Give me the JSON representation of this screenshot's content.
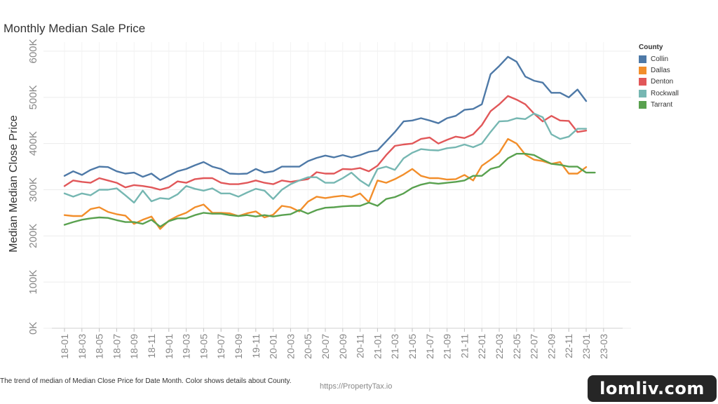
{
  "chart_data": {
    "type": "line",
    "title": "Monthly Median Sale Price",
    "ylabel": "Median Median Close Price",
    "xlabel": "",
    "ylim": [
      0,
      620000
    ],
    "y_ticks": [
      0,
      100000,
      200000,
      300000,
      400000,
      500000,
      600000
    ],
    "y_tick_labels": [
      "0K",
      "100K",
      "200K",
      "300K",
      "400K",
      "500K",
      "600K"
    ],
    "x": [
      "18-01",
      "18-02",
      "18-03",
      "18-04",
      "18-05",
      "18-06",
      "18-07",
      "18-08",
      "18-09",
      "18-10",
      "18-11",
      "18-12",
      "19-01",
      "19-02",
      "19-03",
      "19-04",
      "19-05",
      "19-06",
      "19-07",
      "19-08",
      "19-09",
      "19-10",
      "19-11",
      "19-12",
      "20-01",
      "20-02",
      "20-03",
      "20-04",
      "20-05",
      "20-06",
      "20-07",
      "20-08",
      "20-09",
      "20-10",
      "20-11",
      "20-12",
      "21-01",
      "21-02",
      "21-03",
      "21-04",
      "21-05",
      "21-06",
      "21-07",
      "21-08",
      "21-09",
      "21-10",
      "21-11",
      "21-12",
      "22-01",
      "22-02",
      "22-03",
      "22-04",
      "22-05",
      "22-06",
      "22-07",
      "22-08",
      "22-09",
      "22-10",
      "22-11",
      "22-12",
      "23-01",
      "23-02",
      "23-03"
    ],
    "x_tick_labels": [
      "18-01",
      "18-03",
      "18-05",
      "18-07",
      "18-09",
      "18-11",
      "19-01",
      "19-03",
      "19-05",
      "19-07",
      "19-09",
      "19-11",
      "20-01",
      "20-03",
      "20-05",
      "20-07",
      "20-09",
      "20-11",
      "21-01",
      "21-03",
      "21-05",
      "21-07",
      "21-09",
      "21-11",
      "22-01",
      "22-03",
      "22-05",
      "22-07",
      "22-09",
      "22-11",
      "23-01",
      "23-03"
    ],
    "x_tick_indices": [
      0,
      2,
      4,
      6,
      8,
      10,
      12,
      14,
      16,
      18,
      20,
      22,
      24,
      26,
      28,
      30,
      32,
      34,
      36,
      38,
      40,
      42,
      44,
      46,
      48,
      50,
      52,
      54,
      56,
      58,
      60,
      62
    ],
    "grid": true,
    "legend_position": "right",
    "legend_title": "County",
    "series": [
      {
        "name": "Collin",
        "color": "#4e79a7",
        "values": [
          330000,
          340000,
          332000,
          343000,
          350000,
          349000,
          340000,
          335000,
          337000,
          328000,
          335000,
          321000,
          330000,
          340000,
          345000,
          353000,
          360000,
          350000,
          345000,
          335000,
          334000,
          335000,
          345000,
          337000,
          340000,
          350000,
          350000,
          350000,
          362000,
          369000,
          374000,
          370000,
          375000,
          370000,
          375000,
          382000,
          385000,
          405000,
          425000,
          448000,
          450000,
          455000,
          450000,
          444000,
          455000,
          460000,
          473000,
          475000,
          485000,
          550000,
          568000,
          588000,
          577000,
          545000,
          536000,
          532000,
          510000,
          510000,
          500000,
          517000,
          492000,
          null,
          null
        ]
      },
      {
        "name": "Dallas",
        "color": "#f28e2b",
        "values": [
          245000,
          243000,
          243000,
          258000,
          262000,
          252000,
          247000,
          244000,
          226000,
          235000,
          242000,
          215000,
          233000,
          243000,
          250000,
          262000,
          268000,
          250000,
          250000,
          249000,
          243000,
          249000,
          253000,
          240000,
          246000,
          265000,
          262000,
          253000,
          274000,
          285000,
          282000,
          285000,
          287000,
          284000,
          292000,
          273000,
          320000,
          315000,
          323000,
          333000,
          345000,
          330000,
          325000,
          325000,
          322000,
          323000,
          332000,
          320000,
          352000,
          365000,
          380000,
          410000,
          400000,
          376000,
          365000,
          362000,
          356000,
          360000,
          335000,
          335000,
          349000,
          null,
          null
        ]
      },
      {
        "name": "Denton",
        "color": "#e15759",
        "values": [
          308000,
          320000,
          317000,
          315000,
          325000,
          320000,
          315000,
          305000,
          310000,
          308000,
          305000,
          300000,
          305000,
          318000,
          315000,
          323000,
          325000,
          325000,
          315000,
          312000,
          312000,
          315000,
          320000,
          315000,
          312000,
          320000,
          317000,
          320000,
          323000,
          338000,
          335000,
          335000,
          345000,
          344000,
          347000,
          340000,
          352000,
          375000,
          395000,
          398000,
          400000,
          410000,
          413000,
          400000,
          408000,
          415000,
          412000,
          420000,
          440000,
          470000,
          485000,
          503000,
          495000,
          485000,
          465000,
          448000,
          460000,
          450000,
          449000,
          425000,
          428000,
          null,
          null
        ]
      },
      {
        "name": "Rockwall",
        "color": "#76b7b2",
        "values": [
          292000,
          285000,
          292000,
          288000,
          300000,
          300000,
          303000,
          288000,
          272000,
          298000,
          275000,
          282000,
          280000,
          290000,
          308000,
          302000,
          298000,
          303000,
          292000,
          292000,
          285000,
          294000,
          302000,
          298000,
          280000,
          300000,
          312000,
          320000,
          327000,
          327000,
          315000,
          315000,
          325000,
          337000,
          320000,
          308000,
          345000,
          350000,
          343000,
          368000,
          380000,
          388000,
          386000,
          385000,
          390000,
          392000,
          398000,
          392000,
          400000,
          425000,
          448000,
          449000,
          455000,
          453000,
          465000,
          457000,
          420000,
          410000,
          415000,
          432000,
          432000,
          null,
          null
        ]
      },
      {
        "name": "Tarrant",
        "color": "#59a14f",
        "values": [
          224000,
          230000,
          235000,
          238000,
          240000,
          239000,
          234000,
          230000,
          230000,
          226000,
          235000,
          220000,
          232000,
          238000,
          238000,
          245000,
          250000,
          248000,
          248000,
          245000,
          243000,
          245000,
          242000,
          245000,
          242000,
          245000,
          247000,
          256000,
          248000,
          256000,
          261000,
          262000,
          264000,
          265000,
          265000,
          272000,
          265000,
          280000,
          284000,
          292000,
          304000,
          311000,
          315000,
          313000,
          315000,
          317000,
          320000,
          330000,
          330000,
          345000,
          350000,
          368000,
          378000,
          378000,
          375000,
          365000,
          356000,
          354000,
          350000,
          350000,
          337000,
          337000,
          null
        ]
      }
    ]
  },
  "caption": "The trend of median of Median Close Price for Date Month.  Color shows details about County.",
  "watermark_url": "https://PropertyTax.io",
  "badge": "lomliv.com"
}
